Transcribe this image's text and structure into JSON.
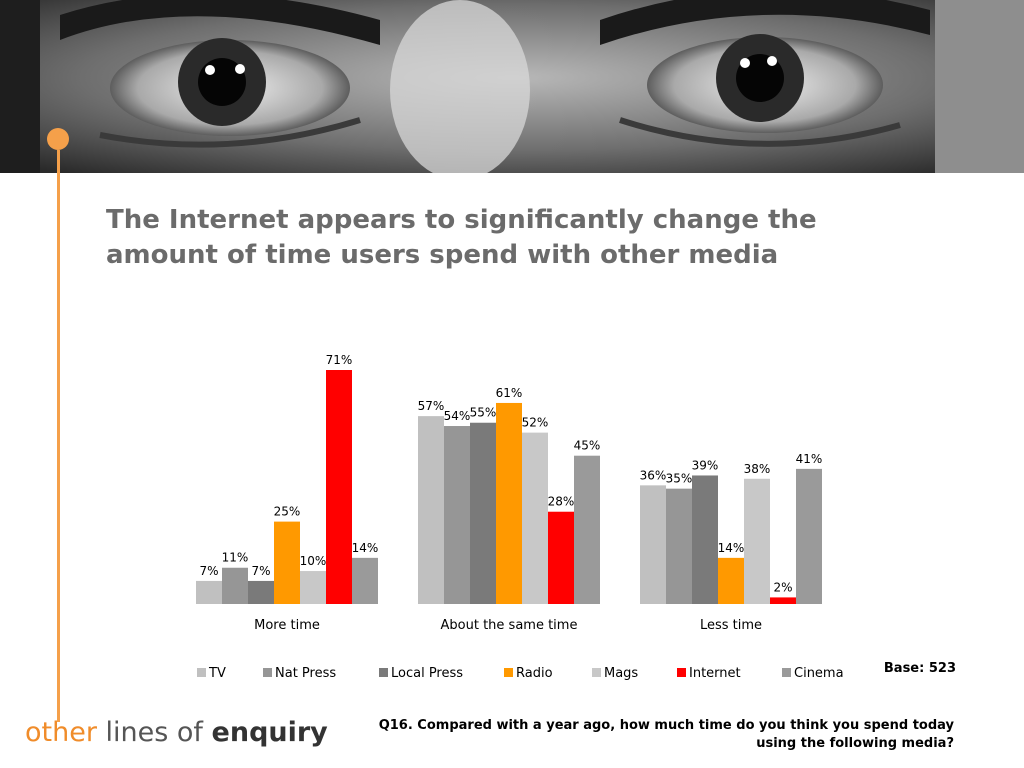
{
  "title": "The Internet appears to significantly change the amount of time users spend with other media",
  "base_note": "Base: 523",
  "question": "Q16. Compared with a year ago, how much time do you think you spend today using the following media?",
  "logo": {
    "part1": "other",
    "part2": "lines of",
    "part3": "enquiry"
  },
  "colors": {
    "accent": "#f5a04a",
    "title": "#6b6b6b"
  },
  "chart_data": {
    "type": "bar",
    "categories": [
      "More time",
      "About the same time",
      "Less time"
    ],
    "ylim": [
      0,
      80
    ],
    "grid": false,
    "legend_position": "bottom",
    "series": [
      {
        "name": "TV",
        "color": "#c0c0c0",
        "values": [
          7,
          57,
          36
        ],
        "labels": [
          "7%",
          "57%",
          "36%"
        ]
      },
      {
        "name": "Nat Press",
        "color": "#969696",
        "values": [
          11,
          54,
          35
        ],
        "labels": [
          "11%",
          "54%",
          "35%"
        ]
      },
      {
        "name": "Local Press",
        "color": "#7a7a7a",
        "values": [
          7,
          55,
          39
        ],
        "labels": [
          "7%",
          "55%",
          "39%"
        ]
      },
      {
        "name": "Radio",
        "color": "#ff9900",
        "values": [
          25,
          61,
          14
        ],
        "labels": [
          "25%",
          "61%",
          "14%"
        ]
      },
      {
        "name": "Mags",
        "color": "#c8c8c8",
        "values": [
          10,
          52,
          38
        ],
        "labels": [
          "10%",
          "52%",
          "38%"
        ]
      },
      {
        "name": "Internet",
        "color": "#ff0000",
        "values": [
          71,
          28,
          2
        ],
        "labels": [
          "71%",
          "28%",
          "2%"
        ]
      },
      {
        "name": "Cinema",
        "color": "#9a9a9a",
        "values": [
          14,
          45,
          41
        ],
        "labels": [
          "14%",
          "45%",
          "41%"
        ]
      }
    ]
  }
}
